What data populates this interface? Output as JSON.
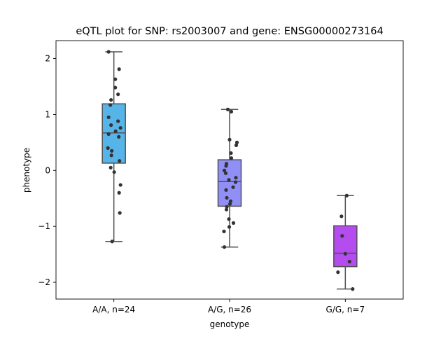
{
  "chart_data": {
    "type": "box",
    "title": "eQTL plot for SNP: rs2003007 and gene: ENSG00000273164",
    "xlabel": "genotype",
    "ylabel": "phenotype",
    "ylim": [
      -2.3,
      2.32
    ],
    "yticks": [
      2,
      1,
      0,
      -1,
      -2
    ],
    "ytick_labels": [
      "2",
      "1",
      "0",
      "−1",
      "−2"
    ],
    "grid": false,
    "categories": [
      "A/A, n=24",
      "A/G, n=26",
      "G/G, n=7"
    ],
    "colors": [
      "#56b4e9",
      "#8f8ff5",
      "#b44cf0"
    ],
    "boxes": [
      {
        "name": "A/A, n=24",
        "whisker_low": -1.27,
        "q1": 0.13,
        "median": 0.67,
        "q3": 1.19,
        "whisker_high": 2.12
      },
      {
        "name": "A/G, n=26",
        "whisker_low": -1.37,
        "q1": -0.64,
        "median": -0.2,
        "q3": 0.19,
        "whisker_high": 1.09
      },
      {
        "name": "G/G, n=7",
        "whisker_low": -2.12,
        "q1": -1.72,
        "median": -1.48,
        "q3": -0.99,
        "whisker_high": -0.45
      }
    ],
    "points": [
      [
        2.12,
        1.81,
        1.63,
        1.48,
        1.36,
        1.26,
        1.17,
        0.95,
        0.88,
        0.81,
        0.76,
        0.7,
        0.65,
        0.6,
        0.4,
        0.35,
        0.27,
        0.17,
        0.05,
        -0.03,
        -0.26,
        -0.4,
        -0.76,
        -1.27
      ],
      [
        1.09,
        1.05,
        0.55,
        0.5,
        0.45,
        0.31,
        0.22,
        0.12,
        0.08,
        0.0,
        -0.05,
        -0.13,
        -0.17,
        -0.21,
        -0.3,
        -0.35,
        -0.49,
        -0.55,
        -0.6,
        -0.65,
        -0.7,
        -0.87,
        -0.94,
        -1.01,
        -1.09,
        -1.37
      ],
      [
        -0.45,
        -0.82,
        -1.17,
        -1.49,
        -1.63,
        -1.82,
        -2.12
      ]
    ],
    "jitter": [
      [
        -0.15,
        0.15,
        0.04,
        0.04,
        0.12,
        -0.08,
        -0.1,
        -0.15,
        0.12,
        -0.08,
        0.19,
        0.05,
        -0.15,
        0.14,
        -0.17,
        -0.06,
        -0.07,
        0.16,
        -0.09,
        0.01,
        0.19,
        0.15,
        0.17,
        -0.05
      ],
      [
        -0.05,
        0.05,
        0.0,
        0.21,
        0.19,
        0.04,
        0.05,
        -0.09,
        -0.1,
        -0.15,
        -0.11,
        0.18,
        -0.02,
        0.17,
        0.1,
        -0.1,
        -0.08,
        0.03,
        0.01,
        -0.08,
        -0.09,
        -0.02,
        0.11,
        -0.01,
        -0.16,
        -0.15
      ],
      [
        0.04,
        -0.11,
        -0.09,
        0.0,
        0.12,
        -0.21,
        0.21
      ]
    ]
  }
}
